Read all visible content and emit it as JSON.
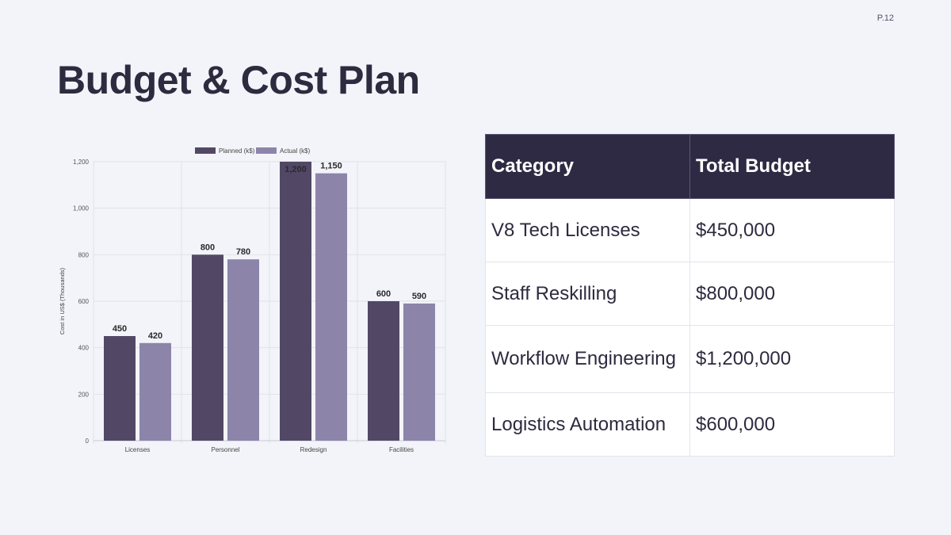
{
  "slide": {
    "title": "Budget & Cost Plan",
    "page_number": "P.12"
  },
  "table": {
    "headers": [
      "Category",
      "Total Budget"
    ],
    "rows": [
      [
        "V8 Tech Licenses",
        "$450,000"
      ],
      [
        "Staff Reskilling",
        "$800,000"
      ],
      [
        "Workflow Engineering",
        "$1,200,000"
      ],
      [
        "Logistics Automation",
        "$600,000"
      ]
    ]
  },
  "colors": {
    "planned": "#524866",
    "actual": "#8d84aa",
    "header_bg": "#2f2a43",
    "title": "#2e2a3f",
    "background": "#f3f4f9"
  },
  "chart_data": {
    "type": "bar",
    "categories": [
      "Licenses",
      "Personnel",
      "Redesign",
      "Facilities"
    ],
    "series": [
      {
        "name": "Planned (k$)",
        "values": [
          450,
          800,
          1200,
          600
        ],
        "labels": [
          "450",
          "800",
          "1,200",
          "600"
        ]
      },
      {
        "name": "Actual (k$)",
        "values": [
          420,
          780,
          1150,
          590
        ],
        "labels": [
          "420",
          "780",
          "1,150",
          "590"
        ]
      }
    ],
    "ylabel": "Cost in US$ (Thousands)",
    "ylim": [
      0,
      1200
    ],
    "yticks": [
      0,
      200,
      400,
      600,
      800,
      1000,
      1200
    ],
    "ytick_labels": [
      "0",
      "200",
      "400",
      "600",
      "800",
      "1,000",
      "1,200"
    ],
    "legend": "top-center",
    "grid": true
  }
}
